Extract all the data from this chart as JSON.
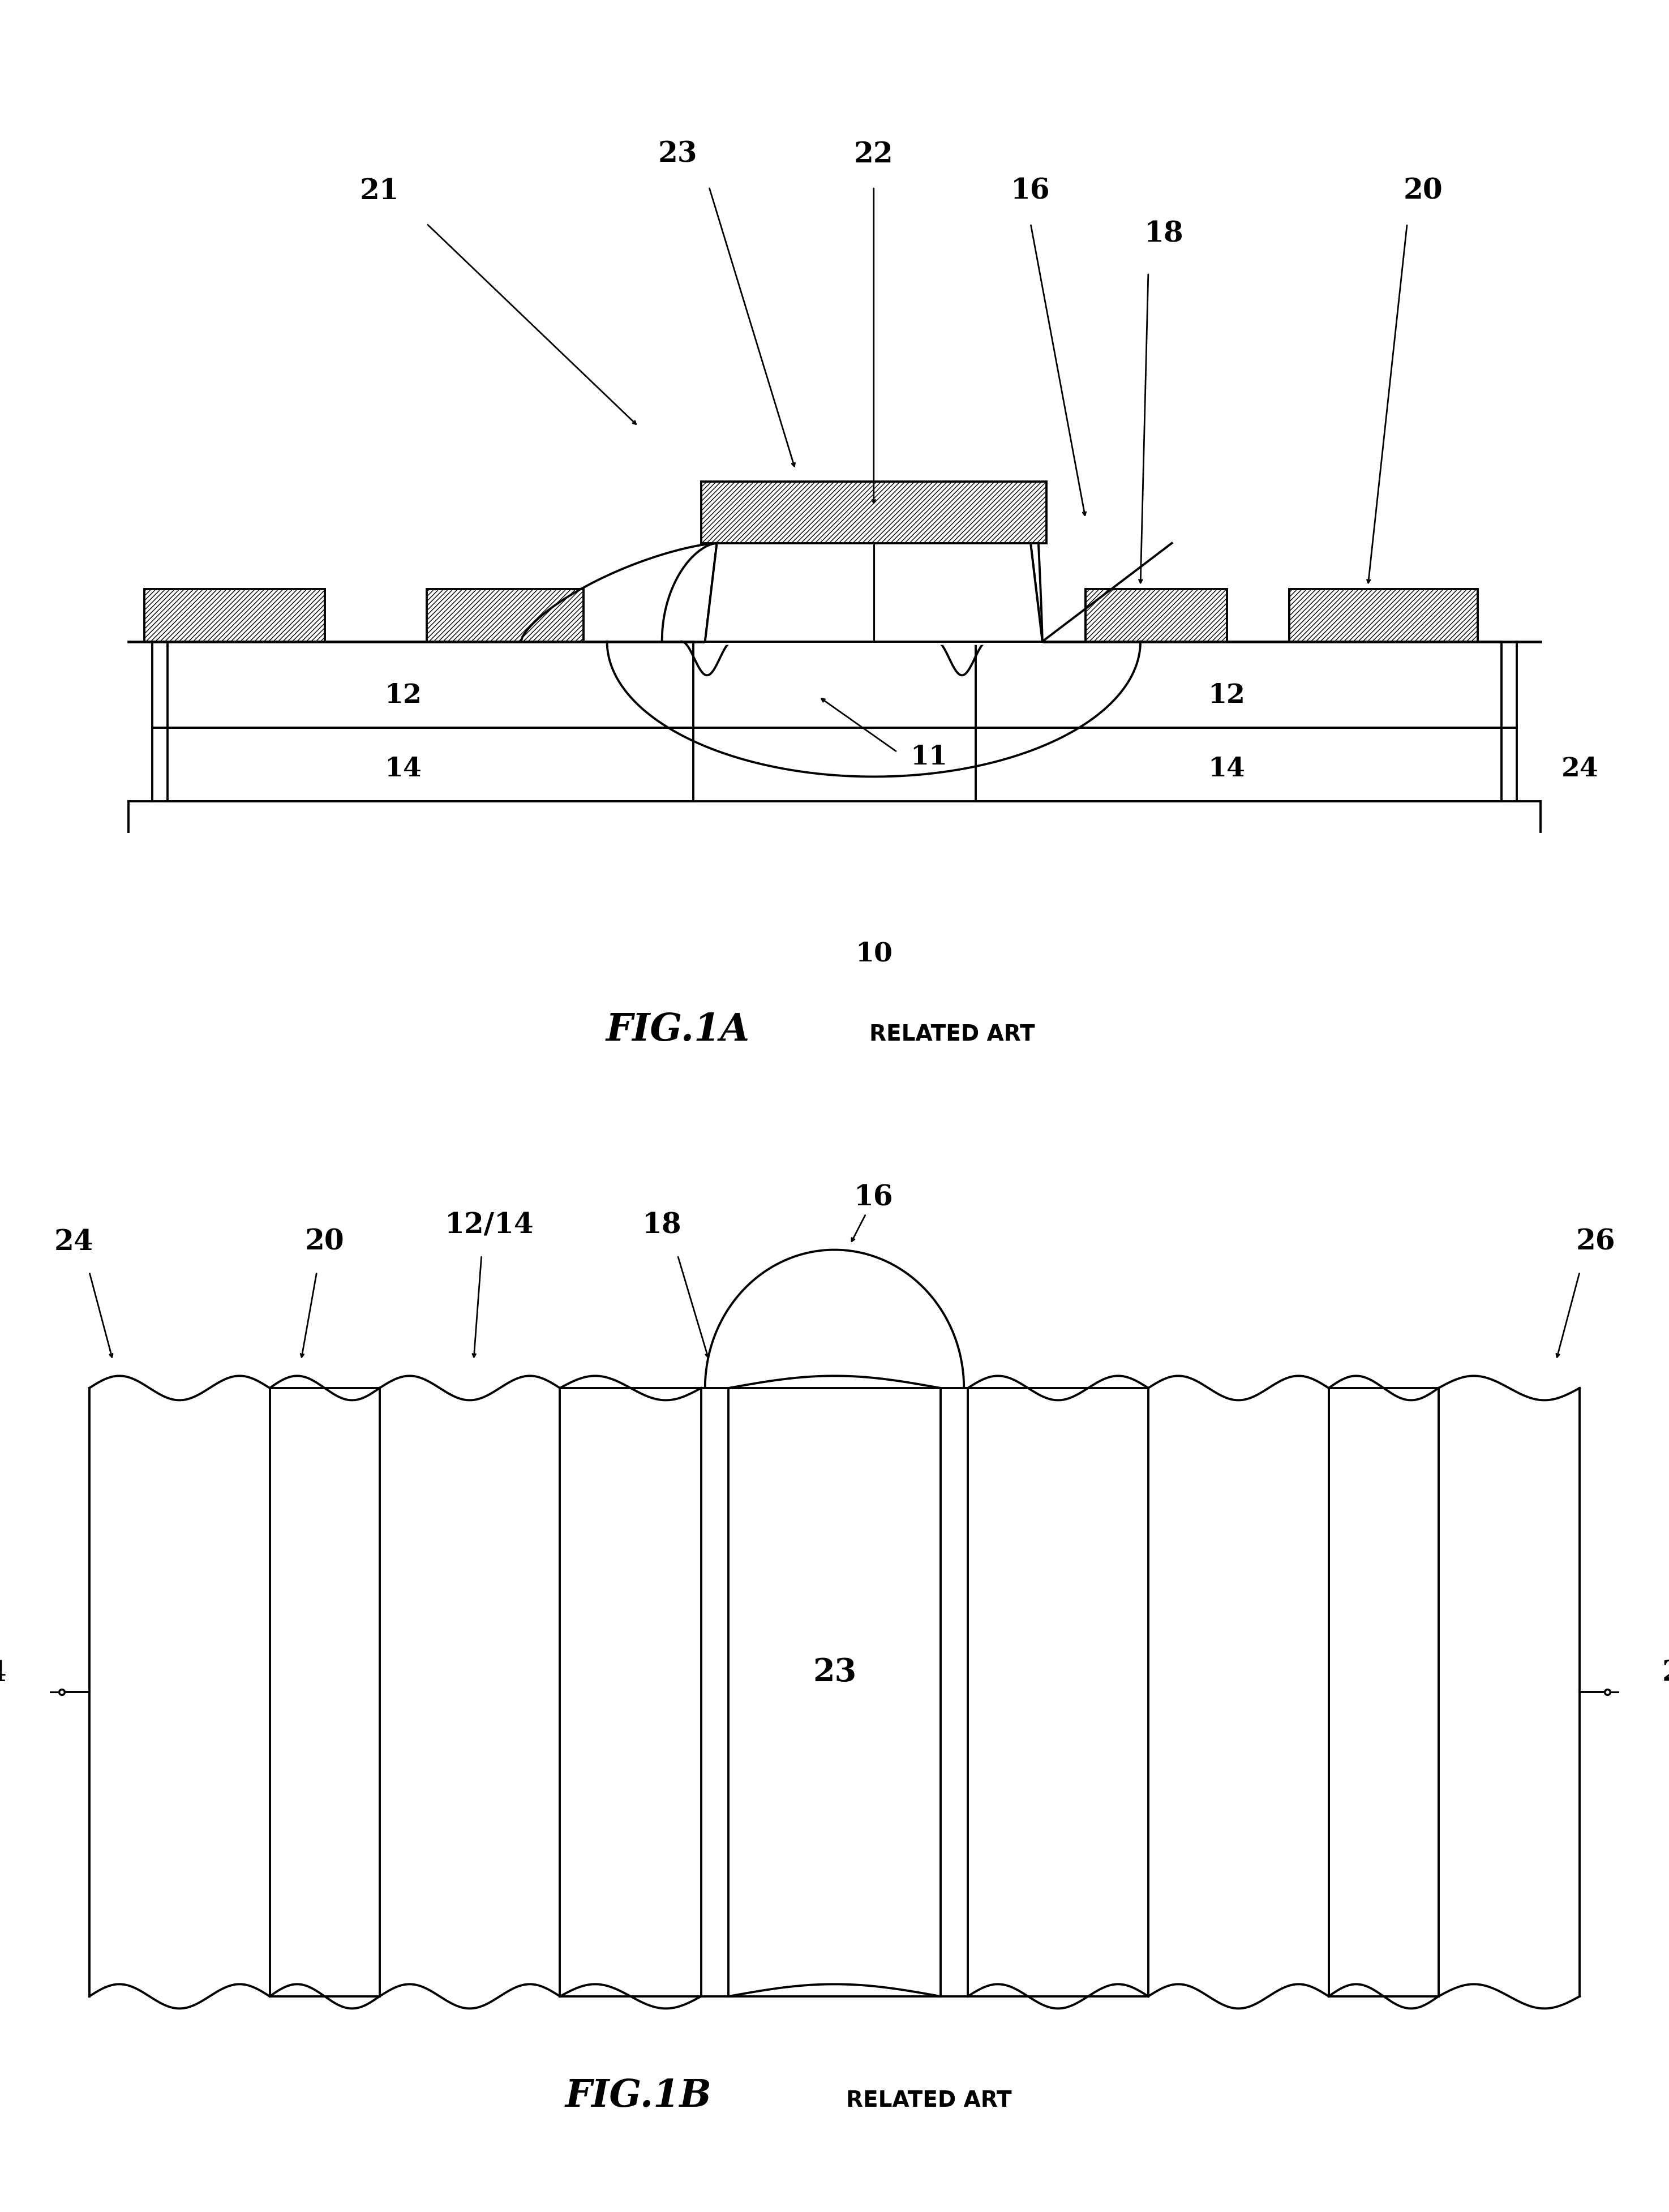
{
  "fig1a": {
    "title": "FIG.1A",
    "subtitle": "RELATED ART",
    "label_10": "10",
    "label_11": "11",
    "label_12": "12",
    "label_14": "14",
    "label_16": "16",
    "label_18": "18",
    "label_20": "20",
    "label_21": "21",
    "label_22": "22",
    "label_23": "23",
    "label_24": "24"
  },
  "fig1b": {
    "title": "FIG.1B",
    "subtitle": "RELATED ART",
    "label_16": "16",
    "label_18": "18",
    "label_20": "20",
    "label_23": "23",
    "label_24": "24",
    "label_26": "26",
    "label_12_14": "12/14"
  },
  "line_color": "#000000",
  "bg_color": "#ffffff",
  "line_width": 2.8
}
